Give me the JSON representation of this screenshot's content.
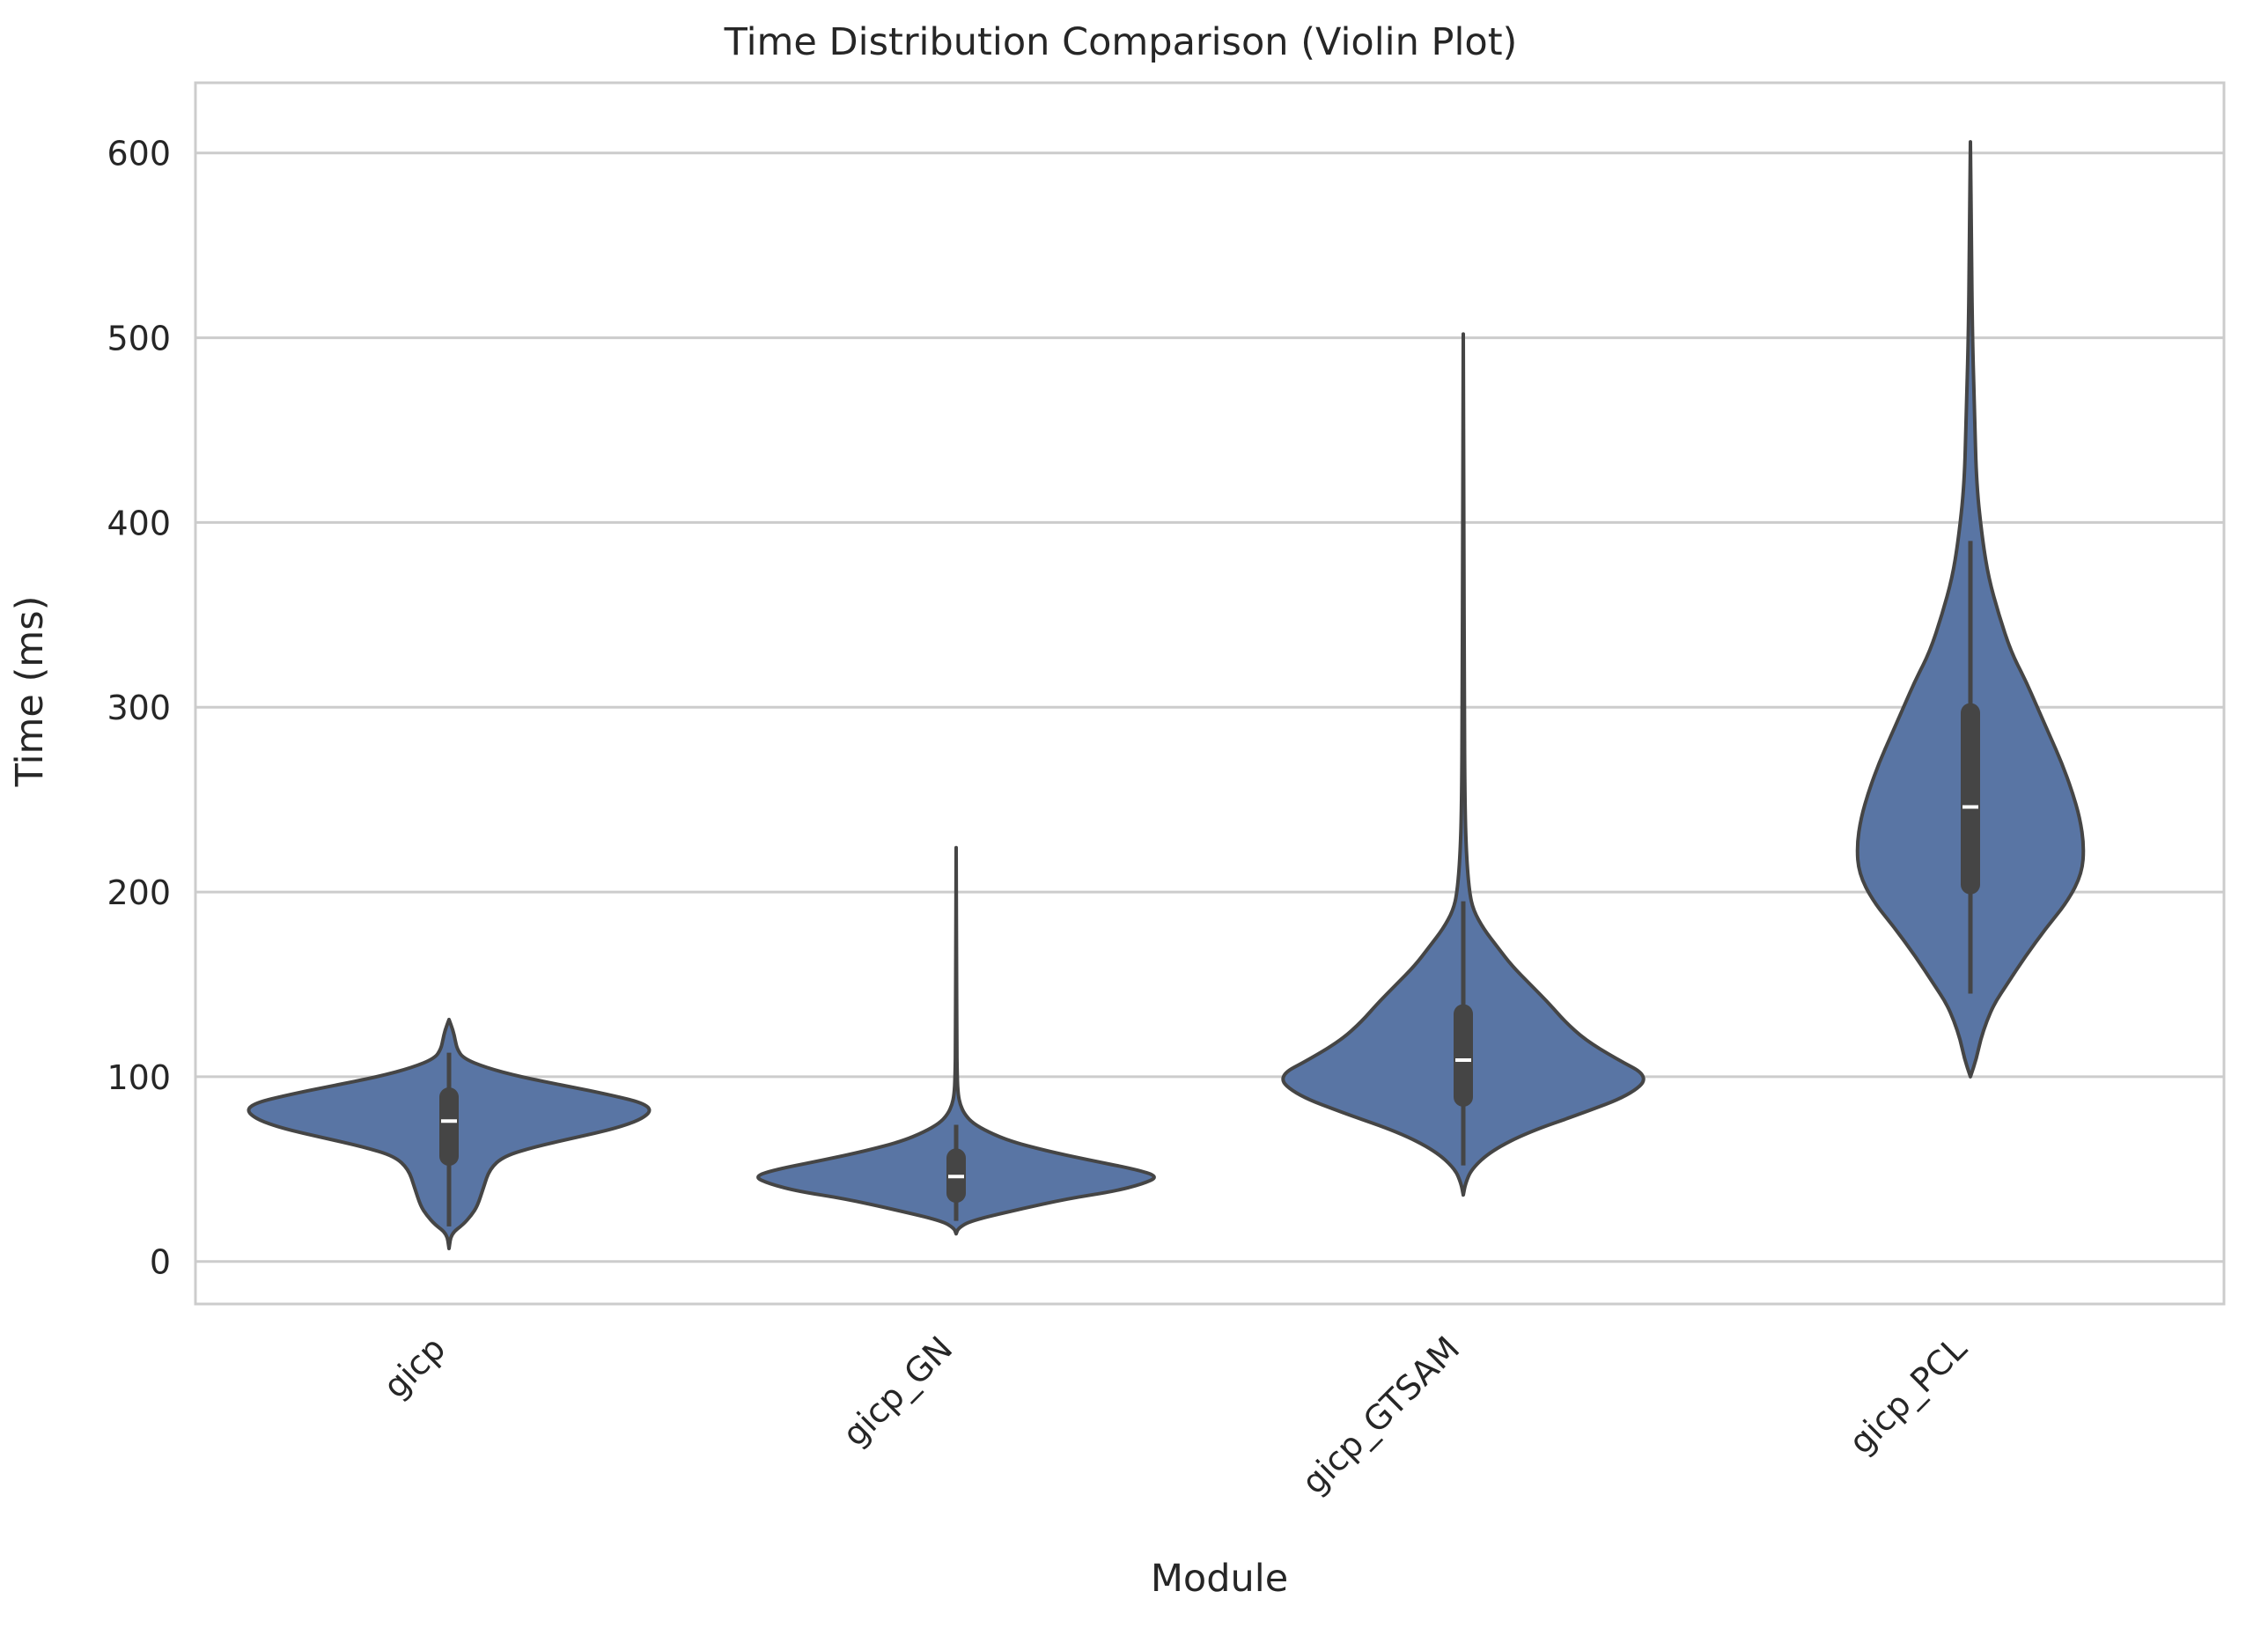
{
  "chart_data": {
    "type": "violin",
    "title": "Time Distribution Comparison (Violin Plot)",
    "xlabel": "Module",
    "ylabel": "Time (ms)",
    "ylim": [
      -23,
      638
    ],
    "yticks": [
      0,
      100,
      200,
      300,
      400,
      500,
      600
    ],
    "grid": true,
    "categories": [
      "gicp",
      "gicp_GN",
      "gicp_GTSAM",
      "gicp_PCL"
    ],
    "violin_color": "#5975a4",
    "edge_color": "#454545",
    "grid_color": "#cccccc",
    "distributions": [
      {
        "category": "gicp",
        "min": 7,
        "q1": 57,
        "median": 76,
        "q3": 89,
        "max": 131,
        "whisker_low": 19,
        "whisker_high": 113,
        "density": [
          [
            7,
            0
          ],
          [
            15,
            0.01
          ],
          [
            20,
            0.07
          ],
          [
            25,
            0.11
          ],
          [
            30,
            0.14
          ],
          [
            40,
            0.17
          ],
          [
            50,
            0.2
          ],
          [
            57,
            0.27
          ],
          [
            62,
            0.42
          ],
          [
            67,
            0.62
          ],
          [
            72,
            0.82
          ],
          [
            77,
            0.95
          ],
          [
            82,
            1.0
          ],
          [
            86,
            0.95
          ],
          [
            90,
            0.8
          ],
          [
            95,
            0.58
          ],
          [
            100,
            0.35
          ],
          [
            105,
            0.18
          ],
          [
            110,
            0.07
          ],
          [
            115,
            0.04
          ],
          [
            120,
            0.03
          ],
          [
            125,
            0.02
          ],
          [
            131,
            0
          ]
        ]
      },
      {
        "category": "gicp_GN",
        "min": 15,
        "q1": 37,
        "median": 46,
        "q3": 56,
        "max": 224,
        "whisker_low": 22,
        "whisker_high": 74,
        "density": [
          [
            15,
            0
          ],
          [
            18,
            0.01
          ],
          [
            22,
            0.07
          ],
          [
            28,
            0.3
          ],
          [
            34,
            0.55
          ],
          [
            38,
            0.78
          ],
          [
            42,
            0.92
          ],
          [
            46,
            1.0
          ],
          [
            50,
            0.88
          ],
          [
            55,
            0.65
          ],
          [
            60,
            0.44
          ],
          [
            65,
            0.27
          ],
          [
            70,
            0.16
          ],
          [
            75,
            0.08
          ],
          [
            80,
            0.04
          ],
          [
            85,
            0.02
          ],
          [
            90,
            0.01
          ],
          [
            100,
            0.005
          ],
          [
            120,
            0.003
          ],
          [
            160,
            0.002
          ],
          [
            224,
            0
          ]
        ]
      },
      {
        "category": "gicp_GTSAM",
        "min": 36,
        "q1": 89,
        "median": 109,
        "q3": 134,
        "max": 502,
        "whisker_low": 52,
        "whisker_high": 195,
        "density": [
          [
            36,
            0
          ],
          [
            42,
            0.01
          ],
          [
            50,
            0.04
          ],
          [
            60,
            0.14
          ],
          [
            70,
            0.32
          ],
          [
            80,
            0.58
          ],
          [
            90,
            0.82
          ],
          [
            100,
            0.92
          ],
          [
            110,
            0.75
          ],
          [
            120,
            0.6
          ],
          [
            130,
            0.5
          ],
          [
            140,
            0.42
          ],
          [
            150,
            0.33
          ],
          [
            160,
            0.24
          ],
          [
            170,
            0.17
          ],
          [
            180,
            0.1
          ],
          [
            190,
            0.05
          ],
          [
            200,
            0.03
          ],
          [
            220,
            0.015
          ],
          [
            250,
            0.008
          ],
          [
            300,
            0.005
          ],
          [
            400,
            0.003
          ],
          [
            502,
            0
          ]
        ]
      },
      {
        "category": "gicp_PCL",
        "min": 100,
        "q1": 204,
        "median": 246,
        "q3": 297,
        "max": 606,
        "whisker_low": 145,
        "whisker_high": 390,
        "density": [
          [
            100,
            0
          ],
          [
            110,
            0.03
          ],
          [
            120,
            0.05
          ],
          [
            130,
            0.08
          ],
          [
            140,
            0.12
          ],
          [
            150,
            0.18
          ],
          [
            165,
            0.27
          ],
          [
            180,
            0.37
          ],
          [
            195,
            0.48
          ],
          [
            210,
            0.55
          ],
          [
            225,
            0.56
          ],
          [
            240,
            0.54
          ],
          [
            255,
            0.5
          ],
          [
            270,
            0.45
          ],
          [
            285,
            0.39
          ],
          [
            300,
            0.33
          ],
          [
            315,
            0.27
          ],
          [
            330,
            0.2
          ],
          [
            350,
            0.14
          ],
          [
            370,
            0.09
          ],
          [
            390,
            0.06
          ],
          [
            420,
            0.03
          ],
          [
            460,
            0.02
          ],
          [
            500,
            0.01
          ],
          [
            550,
            0.005
          ],
          [
            606,
            0
          ]
        ]
      }
    ]
  }
}
